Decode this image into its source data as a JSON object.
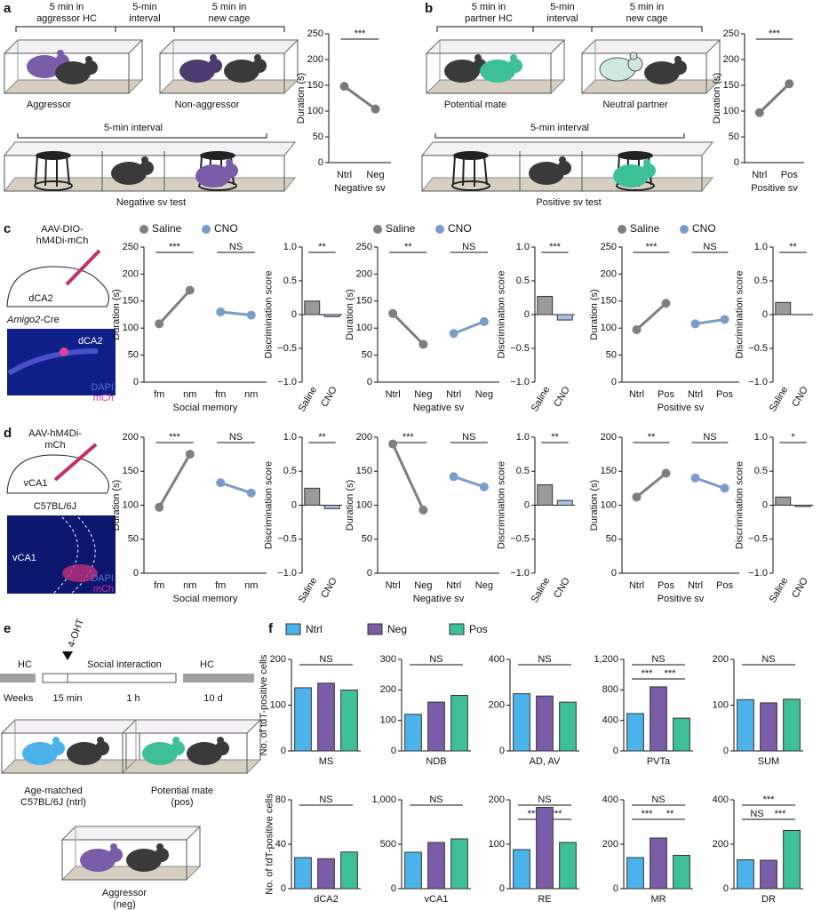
{
  "text": {
    "a": {
      "letter": "a",
      "hdr1": [
        "5 min in",
        "aggressor HC"
      ],
      "hdr2": [
        "5-min",
        "interval"
      ],
      "hdr3": [
        "5 min in",
        "new cage"
      ],
      "mouse1": "Aggressor",
      "mouse2": "Non-aggressor",
      "interval": "5-min interval",
      "test": "Negative sv test"
    },
    "b": {
      "letter": "b",
      "hdr1": [
        "5 min in",
        "partner HC"
      ],
      "hdr2": [
        "5-min",
        "interval"
      ],
      "hdr3": [
        "5 min in",
        "new cage"
      ],
      "mouse1": "Potential mate",
      "mouse2": "Neutral partner",
      "interval": "5-min interval",
      "test": "Positive sv test"
    },
    "c": {
      "letter": "c",
      "virus": [
        "AAV-DIO-",
        "hM4Di-mCh"
      ],
      "region": "dCA2",
      "line": "Amigo2",
      "line_suffix": "-Cre",
      "img_region": "dCA2",
      "dapi": "DAPI",
      "mch": "mCh"
    },
    "d": {
      "letter": "d",
      "virus": [
        "AAV-hM4Di-",
        "mCh"
      ],
      "region": "vCA1",
      "line": "C57BL/6J",
      "img_region": "vCA1",
      "dapi": "DAPI",
      "mch": "mCh"
    },
    "e": {
      "letter": "e",
      "hc1": "HC",
      "ohT": "4-OHT",
      "social": "Social interaction",
      "hc2": "HC",
      "weeks": "Weeks",
      "min15": "15 min",
      "h1": "1 h",
      "d10": "10 d",
      "ntrl": [
        "Age-matched",
        "C57BL/6J (ntrl)"
      ],
      "pos": [
        "Potential mate",
        "(pos)"
      ],
      "neg": [
        "Aggressor",
        "(neg)"
      ]
    },
    "f": {
      "letter": "f",
      "legend": [
        {
          "name": "Ntrl",
          "color": "#4cb3ea"
        },
        {
          "name": "Neg",
          "color": "#7a5ca8"
        },
        {
          "name": "Pos",
          "color": "#3dbf98"
        }
      ]
    }
  },
  "chart_data": [
    {
      "type": "line",
      "ylabel": "Duration (s)",
      "xlabel": "Negative sv",
      "categories": [
        "Ntrl",
        "Neg"
      ],
      "series": [
        {
          "color": "#7a7a7a",
          "values": [
            148,
            104
          ]
        }
      ],
      "ylim": [
        0,
        250
      ],
      "yticks": [
        0,
        50,
        100,
        150,
        200,
        250
      ],
      "significance": [
        "***"
      ]
    },
    {
      "type": "line",
      "ylabel": "Duration (s)",
      "xlabel": "Positive sv",
      "categories": [
        "Ntrl",
        "Pos"
      ],
      "series": [
        {
          "color": "#7a7a7a",
          "values": [
            97,
            153
          ]
        }
      ],
      "ylim": [
        0,
        250
      ],
      "yticks": [
        0,
        50,
        100,
        150,
        200,
        250
      ],
      "significance": [
        "***"
      ]
    },
    {
      "type": "line",
      "ylabel": "Duration (s)",
      "xlabel": "Social memory",
      "categories": [
        "fm",
        "nm",
        "fm",
        "nm"
      ],
      "series": [
        {
          "name": "Saline",
          "color": "#7f7f7f",
          "values": [
            108,
            170,
            null,
            null
          ]
        },
        {
          "name": "CNO",
          "color": "#7a9cc8",
          "values": [
            null,
            null,
            130,
            124
          ]
        }
      ],
      "ylim": [
        0,
        250
      ],
      "yticks": [
        0,
        50,
        100,
        150,
        200,
        250
      ],
      "significance": [
        "***",
        "NS"
      ]
    },
    {
      "type": "disc",
      "ylabel": "Discrimination score",
      "categories": [
        "Saline",
        "CNO"
      ],
      "values": [
        0.2,
        -0.03
      ],
      "colors": [
        "#9a9a9a",
        "#a8c2e2"
      ],
      "ylim": [
        -1,
        1
      ],
      "yticks": [
        {
          "value": -1,
          "label": "−1.0"
        },
        {
          "value": -0.5,
          "label": "−0.5"
        },
        0,
        0.5,
        {
          "value": 1,
          "label": "1.0"
        }
      ],
      "significance": [
        "**"
      ]
    },
    {
      "type": "line",
      "ylabel": "Duration (s)",
      "xlabel": "Negative sv",
      "categories": [
        "Ntrl",
        "Neg",
        "Ntrl",
        "Neg"
      ],
      "series": [
        {
          "name": "Saline",
          "color": "#7f7f7f",
          "values": [
            127,
            70,
            null,
            null
          ]
        },
        {
          "name": "CNO",
          "color": "#7a9cc8",
          "values": [
            null,
            null,
            90,
            112
          ]
        }
      ],
      "ylim": [
        0,
        250
      ],
      "yticks": [
        0,
        50,
        100,
        150,
        200,
        250
      ],
      "significance": [
        "**",
        "NS"
      ]
    },
    {
      "type": "disc",
      "ylabel": "Discrimination score",
      "categories": [
        "Saline",
        "CNO"
      ],
      "values": [
        0.27,
        -0.08
      ],
      "colors": [
        "#9a9a9a",
        "#a8c2e2"
      ],
      "ylim": [
        -1,
        1
      ],
      "yticks": [
        {
          "value": -1,
          "label": "−1.0"
        },
        {
          "value": -0.5,
          "label": "−0.5"
        },
        0,
        0.5,
        {
          "value": 1,
          "label": "1.0"
        }
      ],
      "significance": [
        "***"
      ]
    },
    {
      "type": "line",
      "ylabel": "Duration (s)",
      "xlabel": "Positive sv",
      "categories": [
        "Ntrl",
        "Pos",
        "Ntrl",
        "Pos"
      ],
      "series": [
        {
          "name": "Saline",
          "color": "#7f7f7f",
          "values": [
            97,
            146,
            null,
            null
          ]
        },
        {
          "name": "CNO",
          "color": "#7a9cc8",
          "values": [
            null,
            null,
            108,
            116
          ]
        }
      ],
      "ylim": [
        0,
        250
      ],
      "yticks": [
        0,
        50,
        100,
        150,
        200,
        250
      ],
      "significance": [
        "***",
        "NS"
      ]
    },
    {
      "type": "disc",
      "ylabel": "Discrimination score",
      "categories": [
        "Saline",
        "CNO"
      ],
      "values": [
        0.18,
        0.0
      ],
      "colors": [
        "#9a9a9a",
        "#a8c2e2"
      ],
      "ylim": [
        -1,
        1
      ],
      "yticks": [
        {
          "value": -1,
          "label": "−1.0"
        },
        {
          "value": -0.5,
          "label": "−0.5"
        },
        0,
        0.5,
        {
          "value": 1,
          "label": "1.0"
        }
      ],
      "significance": [
        "**"
      ]
    },
    {
      "type": "line",
      "ylabel": "Duration (s)",
      "xlabel": "Social memory",
      "categories": [
        "fm",
        "nm",
        "fm",
        "nm"
      ],
      "series": [
        {
          "color": "#7f7f7f",
          "values": [
            97,
            175,
            null,
            null
          ]
        },
        {
          "color": "#7a9cc8",
          "values": [
            null,
            null,
            133,
            118
          ]
        }
      ],
      "ylim": [
        0,
        200
      ],
      "yticks": [
        0,
        50,
        100,
        150,
        200
      ],
      "significance": [
        "***",
        "NS"
      ]
    },
    {
      "type": "disc",
      "ylabel": "Discrimination score",
      "categories": [
        "Saline",
        "CNO"
      ],
      "values": [
        0.25,
        -0.05
      ],
      "colors": [
        "#9a9a9a",
        "#a8c2e2"
      ],
      "ylim": [
        -1,
        1
      ],
      "yticks": [
        {
          "value": -1,
          "label": "−1.0"
        },
        {
          "value": -0.5,
          "label": "−0.5"
        },
        0,
        0.5,
        {
          "value": 1,
          "label": "1.0"
        }
      ],
      "significance": [
        "**"
      ]
    },
    {
      "type": "line",
      "ylabel": "Duration (s)",
      "xlabel": "Negative sv",
      "categories": [
        "Ntrl",
        "Neg",
        "Ntrl",
        "Neg"
      ],
      "series": [
        {
          "color": "#7f7f7f",
          "values": [
            190,
            93,
            null,
            null
          ]
        },
        {
          "color": "#7a9cc8",
          "values": [
            null,
            null,
            142,
            127
          ]
        }
      ],
      "ylim": [
        0,
        200
      ],
      "yticks": [
        0,
        50,
        100,
        150,
        200
      ],
      "significance": [
        "***",
        "NS"
      ]
    },
    {
      "type": "disc",
      "ylabel": "Discrimination score",
      "categories": [
        "Saline",
        "CNO"
      ],
      "values": [
        0.3,
        0.07
      ],
      "colors": [
        "#9a9a9a",
        "#a8c2e2"
      ],
      "ylim": [
        -1,
        1
      ],
      "yticks": [
        {
          "value": -1,
          "label": "−1.0"
        },
        {
          "value": -0.5,
          "label": "−0.5"
        },
        0,
        0.5,
        {
          "value": 1,
          "label": "1.0"
        }
      ],
      "significance": [
        "**"
      ]
    },
    {
      "type": "line",
      "ylabel": "Duration (s)",
      "xlabel": "Positive sv",
      "categories": [
        "Ntrl",
        "Pos",
        "Ntrl",
        "Pos"
      ],
      "series": [
        {
          "color": "#7f7f7f",
          "values": [
            112,
            147,
            null,
            null
          ]
        },
        {
          "color": "#7a9cc8",
          "values": [
            null,
            null,
            140,
            125
          ]
        }
      ],
      "ylim": [
        0,
        200
      ],
      "yticks": [
        0,
        50,
        100,
        150,
        200
      ],
      "significance": [
        "**",
        "NS"
      ]
    },
    {
      "type": "disc",
      "ylabel": "Discrimination score",
      "categories": [
        "Saline",
        "CNO"
      ],
      "values": [
        0.12,
        -0.02
      ],
      "colors": [
        "#9a9a9a",
        "#a8c2e2"
      ],
      "ylim": [
        -1,
        1
      ],
      "yticks": [
        {
          "value": -1,
          "label": "−1.0"
        },
        {
          "value": -0.5,
          "label": "−0.5"
        },
        0,
        0.5,
        {
          "value": 1,
          "label": "1.0"
        }
      ],
      "significance": [
        "*"
      ]
    },
    {
      "type": "bar",
      "ylabel": "No. of tdT-positive cells",
      "xlabel": "MS",
      "values": [
        138,
        148,
        133
      ],
      "ylim": [
        0,
        200
      ],
      "yticks": [
        0,
        100,
        200
      ],
      "significance": [
        "NS"
      ]
    },
    {
      "type": "bar",
      "xlabel": "NDB",
      "values": [
        120,
        160,
        182
      ],
      "ylim": [
        0,
        300
      ],
      "yticks": [
        0,
        100,
        200,
        300
      ],
      "significance": [
        "NS"
      ]
    },
    {
      "type": "bar",
      "xlabel": "AD, AV",
      "values": [
        250,
        240,
        213
      ],
      "ylim": [
        0,
        400
      ],
      "yticks": [
        0,
        200,
        400
      ],
      "significance": [
        "NS"
      ]
    },
    {
      "type": "bar",
      "xlabel": "PVTa",
      "values": [
        490,
        840,
        430
      ],
      "ylim": [
        0,
        1200
      ],
      "yticks": [
        0,
        400,
        800,
        {
          "value": 1200,
          "label": "1,200"
        }
      ],
      "significance": [
        "NS",
        "***",
        "***"
      ]
    },
    {
      "type": "bar",
      "xlabel": "SUM",
      "values": [
        112,
        105,
        113
      ],
      "ylim": [
        0,
        200
      ],
      "yticks": [
        0,
        100,
        200
      ],
      "significance": [
        "NS"
      ]
    },
    {
      "type": "bar",
      "ylabel": "No. of tdT-positive cells",
      "xlabel": "dCA2",
      "values": [
        28,
        27,
        33
      ],
      "ylim": [
        0,
        80
      ],
      "yticks": [
        0,
        40,
        80
      ],
      "significance": [
        "NS"
      ]
    },
    {
      "type": "bar",
      "xlabel": "vCA1",
      "values": [
        410,
        520,
        560
      ],
      "ylim": [
        0,
        1000
      ],
      "yticks": [
        0,
        500,
        {
          "value": 1000,
          "label": "1,000"
        }
      ],
      "significance": [
        "NS"
      ]
    },
    {
      "type": "bar",
      "xlabel": "RE",
      "values": [
        88,
        183,
        104
      ],
      "ylim": [
        0,
        200
      ],
      "yticks": [
        0,
        100,
        200
      ],
      "significance": [
        "NS",
        "***",
        "***"
      ]
    },
    {
      "type": "bar",
      "xlabel": "MR",
      "values": [
        140,
        228,
        150
      ],
      "ylim": [
        0,
        400
      ],
      "yticks": [
        0,
        200,
        400
      ],
      "significance": [
        "NS",
        "***",
        "**"
      ]
    },
    {
      "type": "bar",
      "xlabel": "DR",
      "values": [
        130,
        128,
        262
      ],
      "ylim": [
        0,
        400
      ],
      "yticks": [
        0,
        200,
        400
      ],
      "significance": [
        "***",
        "NS",
        "***"
      ]
    }
  ]
}
